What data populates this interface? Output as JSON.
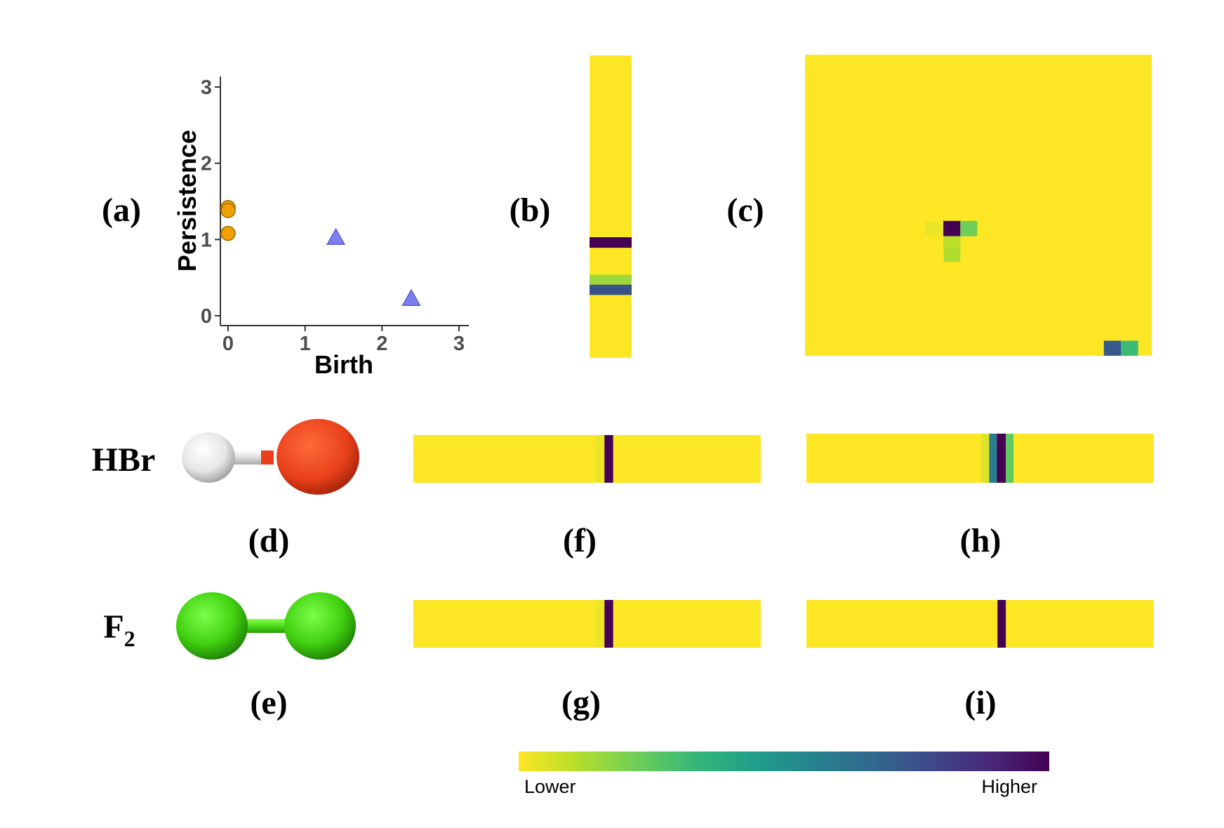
{
  "panel_labels": {
    "a": "(a)",
    "b": "(b)",
    "c": "(c)",
    "d": "(d)",
    "e": "(e)",
    "f": "(f)",
    "g": "(g)",
    "h": "(h)",
    "i": "(i)"
  },
  "molecules": {
    "hbr": {
      "name": "HBr",
      "atom_colors": [
        "#e8e8e8",
        "#e8401a"
      ],
      "bond_color": "#f0f0f0"
    },
    "f2": {
      "name": "F",
      "subscript": "2",
      "atom_colors": [
        "#40d010",
        "#40d010"
      ],
      "bond_color": "#50e020"
    }
  },
  "colorbar": {
    "low_label": "Lower",
    "high_label": "Higher",
    "colormap": "viridis-reversed",
    "stops": [
      "#fde725",
      "#b5de2b",
      "#6ece58",
      "#35b779",
      "#1f9e89",
      "#26828e",
      "#31688e",
      "#3e4989",
      "#482878",
      "#440154"
    ]
  },
  "chart_data": [
    {
      "id": "a",
      "type": "scatter",
      "xlabel": "Birth",
      "ylabel": "Persistence",
      "xlim": [
        0,
        3
      ],
      "ylim": [
        0,
        3
      ],
      "xticks": [
        "0",
        "1",
        "2",
        "3"
      ],
      "yticks": [
        "0",
        "1",
        "2",
        "3"
      ],
      "grid": false,
      "series": [
        {
          "marker": "circle",
          "color": "#f0a000",
          "points": [
            [
              0,
              1.42
            ],
            [
              0,
              1.38
            ],
            [
              0,
              1.08
            ]
          ]
        },
        {
          "marker": "triangle",
          "color": "#7b7ff0",
          "points": [
            [
              1.4,
              1.02
            ],
            [
              2.38,
              0.22
            ]
          ]
        }
      ]
    },
    {
      "id": "b",
      "type": "heatmap",
      "background": 0,
      "bands": [
        {
          "orient": "row",
          "from": 0.601,
          "to": 0.636,
          "value": 1.0
        },
        {
          "orient": "row",
          "from": 0.725,
          "to": 0.758,
          "value": 0.15
        },
        {
          "orient": "row",
          "from": 0.758,
          "to": 0.792,
          "value": 0.75
        }
      ]
    },
    {
      "id": "c",
      "type": "heatmap",
      "background": 0,
      "cells": [
        {
          "col": 0.347,
          "row": 0.553,
          "w": 0.053,
          "h": 0.049,
          "value": 0.03
        },
        {
          "col": 0.4,
          "row": 0.553,
          "w": 0.05,
          "h": 0.049,
          "value": 0.05
        },
        {
          "col": 0.446,
          "row": 0.553,
          "w": 0.047,
          "h": 0.049,
          "value": 0.05
        },
        {
          "col": 0.4,
          "row": 0.602,
          "w": 0.05,
          "h": 0.049,
          "value": 0.04
        },
        {
          "col": 0.4,
          "row": 0.638,
          "w": 0.048,
          "h": 0.05,
          "value": 0.12
        },
        {
          "col": 0.399,
          "row": 0.552,
          "w": 0.049,
          "h": 0.051,
          "value": 1.0
        },
        {
          "col": 0.448,
          "row": 0.552,
          "w": 0.049,
          "h": 0.051,
          "value": 0.22
        },
        {
          "col": 0.399,
          "row": 0.603,
          "w": 0.049,
          "h": 0.04,
          "value": 0.1
        },
        {
          "col": 0.862,
          "row": 0.95,
          "w": 0.05,
          "h": 0.05,
          "value": 0.72
        },
        {
          "col": 0.911,
          "row": 0.95,
          "w": 0.05,
          "h": 0.05,
          "value": 0.32
        }
      ]
    },
    {
      "id": "f",
      "type": "heatmap",
      "background": 0,
      "bands": [
        {
          "orient": "col",
          "from": 0.526,
          "to": 0.55,
          "value": 0.03
        },
        {
          "orient": "col",
          "from": 0.55,
          "to": 0.575,
          "value": 1.0
        }
      ]
    },
    {
      "id": "g",
      "type": "heatmap",
      "background": 0,
      "bands": [
        {
          "orient": "col",
          "from": 0.526,
          "to": 0.55,
          "value": 0.03
        },
        {
          "orient": "col",
          "from": 0.55,
          "to": 0.575,
          "value": 1.0
        }
      ]
    },
    {
      "id": "h",
      "type": "heatmap",
      "background": 0,
      "bands": [
        {
          "orient": "col",
          "from": 0.503,
          "to": 0.526,
          "value": 0.05
        },
        {
          "orient": "col",
          "from": 0.526,
          "to": 0.548,
          "value": 0.58
        },
        {
          "orient": "col",
          "from": 0.548,
          "to": 0.574,
          "value": 1.0
        },
        {
          "orient": "col",
          "from": 0.574,
          "to": 0.596,
          "value": 0.25
        }
      ]
    },
    {
      "id": "i",
      "type": "heatmap",
      "background": 0,
      "bands": [
        {
          "orient": "col",
          "from": 0.55,
          "to": 0.574,
          "value": 1.0
        }
      ]
    }
  ]
}
